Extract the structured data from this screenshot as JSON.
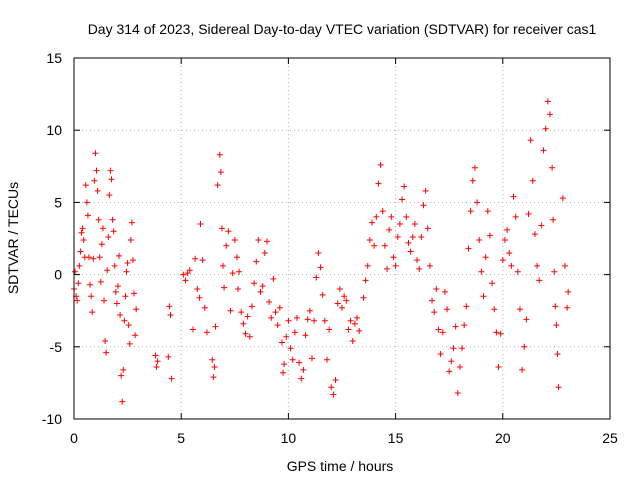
{
  "chart_data": {
    "type": "scatter",
    "title": "Day 314 of 2023, Sidereal Day-to-day VTEC variation (SDTVAR) for receiver cas1",
    "xlabel": "GPS time / hours",
    "ylabel": "SDTVAR / TECUs",
    "xlim": [
      0,
      25
    ],
    "ylim": [
      -10,
      15
    ],
    "xticks": [
      0,
      5,
      10,
      15,
      20,
      25
    ],
    "yticks": [
      -10,
      -5,
      0,
      5,
      10,
      15
    ],
    "grid": true,
    "marker": "+",
    "colors": {
      "series": "#ff0000",
      "grid": "#b0b0b0",
      "axis": "#000000"
    },
    "series": [
      {
        "name": "SDTVAR",
        "points": [
          [
            0.0,
            -1.0
          ],
          [
            0.05,
            0.2
          ],
          [
            0.1,
            -1.5
          ],
          [
            0.15,
            -1.8
          ],
          [
            0.2,
            -0.6
          ],
          [
            0.25,
            0.6
          ],
          [
            0.3,
            1.6
          ],
          [
            0.35,
            2.9
          ],
          [
            0.4,
            3.2
          ],
          [
            0.45,
            2.4
          ],
          [
            0.5,
            1.2
          ],
          [
            0.55,
            6.2
          ],
          [
            0.6,
            5.0
          ],
          [
            0.65,
            4.1
          ],
          [
            0.7,
            1.2
          ],
          [
            0.75,
            -0.7
          ],
          [
            0.8,
            -1.5
          ],
          [
            0.85,
            -2.6
          ],
          [
            0.9,
            1.1
          ],
          [
            0.95,
            6.5
          ],
          [
            1.0,
            8.4
          ],
          [
            1.05,
            7.2
          ],
          [
            1.1,
            5.8
          ],
          [
            1.15,
            3.8
          ],
          [
            1.2,
            1.2
          ],
          [
            1.25,
            -0.5
          ],
          [
            1.3,
            2.1
          ],
          [
            1.35,
            3.2
          ],
          [
            1.4,
            -1.8
          ],
          [
            1.45,
            -4.6
          ],
          [
            1.5,
            -5.4
          ],
          [
            1.55,
            0.3
          ],
          [
            1.6,
            2.6
          ],
          [
            1.65,
            5.5
          ],
          [
            1.7,
            7.2
          ],
          [
            1.75,
            6.6
          ],
          [
            1.8,
            3.8
          ],
          [
            1.85,
            3.0
          ],
          [
            1.9,
            0.6
          ],
          [
            1.95,
            -1.2
          ],
          [
            2.0,
            -2.0
          ],
          [
            2.05,
            -0.8
          ],
          [
            2.1,
            1.3
          ],
          [
            2.15,
            -2.8
          ],
          [
            2.2,
            -7.0
          ],
          [
            2.25,
            -8.8
          ],
          [
            2.3,
            -6.6
          ],
          [
            2.35,
            -3.2
          ],
          [
            2.4,
            -1.5
          ],
          [
            2.45,
            0.2
          ],
          [
            2.5,
            0.8
          ],
          [
            2.55,
            -3.5
          ],
          [
            2.6,
            -4.8
          ],
          [
            2.65,
            2.4
          ],
          [
            2.7,
            3.6
          ],
          [
            2.75,
            1.0
          ],
          [
            2.8,
            -1.3
          ],
          [
            2.85,
            -4.2
          ],
          [
            2.9,
            -2.4
          ],
          [
            3.8,
            -5.6
          ],
          [
            3.85,
            -6.4
          ],
          [
            3.9,
            -6.0
          ],
          [
            4.4,
            -5.7
          ],
          [
            4.45,
            -2.2
          ],
          [
            4.5,
            -2.8
          ],
          [
            4.55,
            -7.2
          ],
          [
            5.1,
            0.0
          ],
          [
            5.2,
            -0.4
          ],
          [
            5.3,
            0.1
          ],
          [
            5.4,
            0.3
          ],
          [
            5.55,
            -3.8
          ],
          [
            5.65,
            1.1
          ],
          [
            5.75,
            -1.0
          ],
          [
            5.85,
            -1.6
          ],
          [
            5.9,
            3.5
          ],
          [
            6.0,
            1.0
          ],
          [
            6.1,
            -2.3
          ],
          [
            6.2,
            -4.0
          ],
          [
            6.45,
            -5.9
          ],
          [
            6.5,
            -7.1
          ],
          [
            6.55,
            -6.4
          ],
          [
            6.6,
            -3.6
          ],
          [
            6.7,
            6.2
          ],
          [
            6.8,
            8.3
          ],
          [
            6.85,
            7.1
          ],
          [
            6.9,
            3.2
          ],
          [
            6.95,
            0.6
          ],
          [
            7.0,
            -0.9
          ],
          [
            7.1,
            2.0
          ],
          [
            7.2,
            3.0
          ],
          [
            7.3,
            -2.5
          ],
          [
            7.4,
            0.1
          ],
          [
            7.5,
            2.4
          ],
          [
            7.6,
            1.2
          ],
          [
            7.65,
            -1.0
          ],
          [
            7.7,
            0.2
          ],
          [
            7.8,
            -2.6
          ],
          [
            7.9,
            -3.4
          ],
          [
            8.0,
            -4.1
          ],
          [
            8.1,
            -2.9
          ],
          [
            8.2,
            -4.3
          ],
          [
            8.3,
            -2.2
          ],
          [
            8.4,
            -0.6
          ],
          [
            8.5,
            0.9
          ],
          [
            8.6,
            2.4
          ],
          [
            8.7,
            -1.2
          ],
          [
            8.8,
            -0.8
          ],
          [
            8.9,
            1.5
          ],
          [
            9.0,
            2.3
          ],
          [
            9.1,
            -1.9
          ],
          [
            9.2,
            -3.0
          ],
          [
            9.3,
            -0.3
          ],
          [
            9.4,
            -2.6
          ],
          [
            9.5,
            -3.5
          ],
          [
            9.6,
            -2.3
          ],
          [
            9.7,
            -4.7
          ],
          [
            9.75,
            -6.8
          ],
          [
            9.8,
            -6.2
          ],
          [
            9.9,
            -4.3
          ],
          [
            10.0,
            -3.2
          ],
          [
            10.1,
            -5.1
          ],
          [
            10.2,
            -5.9
          ],
          [
            10.3,
            -4.0
          ],
          [
            10.4,
            -3.0
          ],
          [
            10.5,
            -6.1
          ],
          [
            10.6,
            -7.2
          ],
          [
            10.7,
            -6.6
          ],
          [
            10.8,
            -4.2
          ],
          [
            10.9,
            -3.1
          ],
          [
            11.0,
            -2.5
          ],
          [
            11.1,
            -5.8
          ],
          [
            11.2,
            -3.2
          ],
          [
            11.3,
            -0.2
          ],
          [
            11.4,
            1.5
          ],
          [
            11.5,
            0.5
          ],
          [
            11.6,
            -1.4
          ],
          [
            11.7,
            -3.2
          ],
          [
            11.8,
            -5.9
          ],
          [
            11.9,
            -3.8
          ],
          [
            12.0,
            -7.8
          ],
          [
            12.1,
            -8.3
          ],
          [
            12.2,
            -7.3
          ],
          [
            12.3,
            -2.0
          ],
          [
            12.4,
            -1.0
          ],
          [
            12.5,
            -2.3
          ],
          [
            12.6,
            -1.5
          ],
          [
            12.7,
            -1.8
          ],
          [
            12.8,
            -3.8
          ],
          [
            12.9,
            -3.2
          ],
          [
            13.0,
            -4.6
          ],
          [
            13.1,
            -3.4
          ],
          [
            13.2,
            -3.0
          ],
          [
            13.3,
            -3.9
          ],
          [
            13.5,
            -1.6
          ],
          [
            13.6,
            -0.4
          ],
          [
            13.7,
            0.6
          ],
          [
            13.8,
            2.4
          ],
          [
            13.9,
            3.6
          ],
          [
            14.0,
            2.0
          ],
          [
            14.1,
            4.0
          ],
          [
            14.2,
            6.3
          ],
          [
            14.3,
            7.6
          ],
          [
            14.4,
            4.4
          ],
          [
            14.5,
            2.0
          ],
          [
            14.6,
            0.4
          ],
          [
            14.7,
            3.1
          ],
          [
            14.8,
            4.0
          ],
          [
            14.9,
            1.2
          ],
          [
            15.0,
            0.6
          ],
          [
            15.1,
            2.6
          ],
          [
            15.2,
            3.5
          ],
          [
            15.3,
            5.2
          ],
          [
            15.4,
            6.1
          ],
          [
            15.5,
            4.0
          ],
          [
            15.6,
            2.2
          ],
          [
            15.7,
            1.6
          ],
          [
            15.8,
            2.6
          ],
          [
            15.9,
            3.5
          ],
          [
            16.0,
            1.0
          ],
          [
            16.1,
            0.4
          ],
          [
            16.2,
            2.6
          ],
          [
            16.3,
            4.8
          ],
          [
            16.4,
            5.8
          ],
          [
            16.5,
            3.2
          ],
          [
            16.6,
            0.6
          ],
          [
            16.7,
            -1.8
          ],
          [
            16.8,
            -2.6
          ],
          [
            16.9,
            -1.0
          ],
          [
            17.0,
            -3.8
          ],
          [
            17.1,
            -5.5
          ],
          [
            17.2,
            -4.0
          ],
          [
            17.3,
            -1.2
          ],
          [
            17.4,
            -2.4
          ],
          [
            17.5,
            -6.7
          ],
          [
            17.6,
            -6.0
          ],
          [
            17.7,
            -5.1
          ],
          [
            17.8,
            -3.6
          ],
          [
            17.9,
            -8.2
          ],
          [
            18.0,
            -6.4
          ],
          [
            18.1,
            -5.1
          ],
          [
            18.2,
            -3.5
          ],
          [
            18.3,
            -2.2
          ],
          [
            18.4,
            1.8
          ],
          [
            18.5,
            4.4
          ],
          [
            18.6,
            6.5
          ],
          [
            18.7,
            7.4
          ],
          [
            18.8,
            5.0
          ],
          [
            18.9,
            2.4
          ],
          [
            19.0,
            0.2
          ],
          [
            19.1,
            -1.5
          ],
          [
            19.2,
            1.2
          ],
          [
            19.3,
            4.4
          ],
          [
            19.4,
            2.7
          ],
          [
            19.5,
            -0.6
          ],
          [
            19.6,
            -2.4
          ],
          [
            19.7,
            -4.0
          ],
          [
            19.8,
            -6.4
          ],
          [
            19.9,
            -4.1
          ],
          [
            20.0,
            1.0
          ],
          [
            20.1,
            2.4
          ],
          [
            20.2,
            3.1
          ],
          [
            20.3,
            1.5
          ],
          [
            20.4,
            0.6
          ],
          [
            20.5,
            5.4
          ],
          [
            20.6,
            4.0
          ],
          [
            20.7,
            0.2
          ],
          [
            20.8,
            -2.4
          ],
          [
            20.9,
            -6.6
          ],
          [
            21.0,
            -5.0
          ],
          [
            21.1,
            -3.1
          ],
          [
            21.2,
            4.2
          ],
          [
            21.3,
            9.3
          ],
          [
            21.4,
            6.5
          ],
          [
            21.5,
            2.8
          ],
          [
            21.6,
            0.6
          ],
          [
            21.7,
            -0.4
          ],
          [
            21.8,
            3.4
          ],
          [
            21.9,
            8.6
          ],
          [
            22.0,
            10.1
          ],
          [
            22.1,
            12.0
          ],
          [
            22.2,
            11.1
          ],
          [
            22.3,
            7.4
          ],
          [
            22.35,
            3.8
          ],
          [
            22.4,
            0.2
          ],
          [
            22.45,
            -2.2
          ],
          [
            22.5,
            -3.5
          ],
          [
            22.55,
            -5.5
          ],
          [
            22.6,
            -7.8
          ],
          [
            22.8,
            5.3
          ],
          [
            22.9,
            0.6
          ],
          [
            23.0,
            -2.3
          ],
          [
            23.05,
            -1.2
          ]
        ]
      }
    ]
  }
}
